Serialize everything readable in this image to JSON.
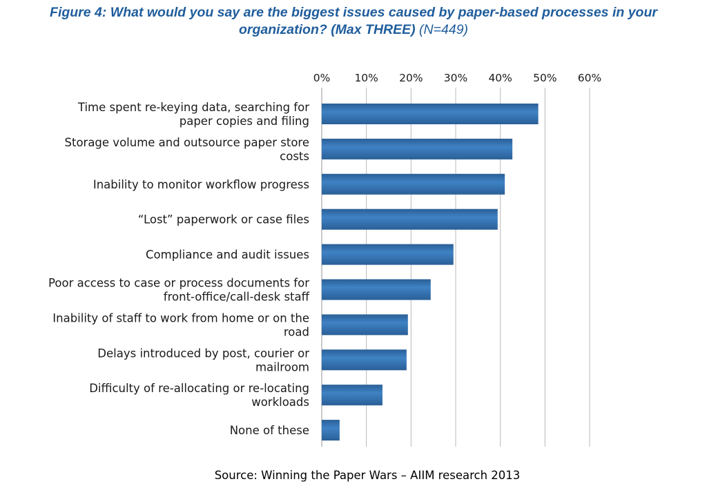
{
  "title": {
    "line1": "Figure 4: What would you say are the biggest issues caused by paper-based processes in your",
    "line2": "organization? (Max THREE)",
    "n_label": "(N=449)"
  },
  "source": "Source: Winning the Paper Wars – AIIM research 2013",
  "colors": {
    "bar": "#3f82c4",
    "bar_dark": "#2a5f97",
    "grid": "#b8b8b8",
    "title": "#1f5d9c"
  },
  "chart_data": {
    "type": "bar",
    "orientation": "horizontal",
    "axis": {
      "xlim": [
        0,
        60
      ],
      "ticks": [
        0,
        10,
        20,
        30,
        40,
        50,
        60
      ],
      "tick_labels": [
        "0%",
        "10%",
        "20%",
        "30%",
        "40%",
        "50%",
        "60%"
      ],
      "position": "top",
      "grid": true
    },
    "categories": [
      [
        "Time spent re-keying data, searching for",
        "paper copies and filing"
      ],
      [
        "Storage volume and outsource paper store",
        "costs"
      ],
      [
        "Inability to monitor workflow progress"
      ],
      [
        "“Lost” paperwork or case files"
      ],
      [
        "Compliance and audit issues"
      ],
      [
        "Poor access to case or process documents for",
        "front-office/call-desk staff"
      ],
      [
        "Inability of staff to work from home or on the",
        "road"
      ],
      [
        "Delays introduced by post, courier or",
        "mailroom"
      ],
      [
        "Difficulty of re-allocating or re-locating",
        "workloads"
      ],
      [
        "None of these"
      ]
    ],
    "values": [
      48.5,
      42.7,
      41.0,
      39.4,
      29.5,
      24.4,
      19.3,
      19.0,
      13.6,
      4.0
    ]
  }
}
